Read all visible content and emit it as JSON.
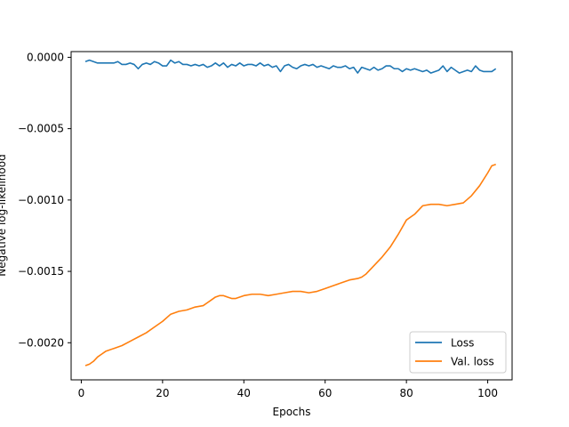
{
  "chart_data": {
    "type": "line",
    "xlabel": "Epochs",
    "ylabel": "Negative log-likelihood",
    "xlim": [
      -2.5,
      106
    ],
    "ylim": [
      -0.00226,
      4e-05
    ],
    "xticks": [
      0,
      20,
      40,
      60,
      80,
      100
    ],
    "xtick_labels": [
      "0",
      "20",
      "40",
      "60",
      "80",
      "100"
    ],
    "yticks": [
      0.0,
      -0.0005,
      -0.001,
      -0.0015,
      -0.002
    ],
    "ytick_labels": [
      "0.0000",
      "−0.0005",
      "−0.0010",
      "−0.0015",
      "−0.0020"
    ],
    "grid": false,
    "legend_position": "lower-right",
    "series": [
      {
        "name": "Loss",
        "color": "#1f77b4",
        "points": [
          [
            1,
            -3e-05
          ],
          [
            2,
            -2e-05
          ],
          [
            3,
            -3e-05
          ],
          [
            4,
            -4e-05
          ],
          [
            5,
            -4e-05
          ],
          [
            6,
            -4e-05
          ],
          [
            7,
            -4e-05
          ],
          [
            8,
            -4e-05
          ],
          [
            9,
            -3e-05
          ],
          [
            10,
            -5e-05
          ],
          [
            11,
            -5e-05
          ],
          [
            12,
            -4e-05
          ],
          [
            13,
            -5e-05
          ],
          [
            14,
            -8e-05
          ],
          [
            15,
            -5e-05
          ],
          [
            16,
            -4e-05
          ],
          [
            17,
            -5e-05
          ],
          [
            18,
            -3e-05
          ],
          [
            19,
            -4e-05
          ],
          [
            20,
            -6e-05
          ],
          [
            21,
            -6e-05
          ],
          [
            22,
            -2e-05
          ],
          [
            23,
            -4e-05
          ],
          [
            24,
            -3e-05
          ],
          [
            25,
            -5e-05
          ],
          [
            26,
            -5e-05
          ],
          [
            27,
            -6e-05
          ],
          [
            28,
            -5e-05
          ],
          [
            29,
            -6e-05
          ],
          [
            30,
            -5e-05
          ],
          [
            31,
            -7e-05
          ],
          [
            32,
            -6e-05
          ],
          [
            33,
            -4e-05
          ],
          [
            34,
            -6e-05
          ],
          [
            35,
            -4e-05
          ],
          [
            36,
            -7e-05
          ],
          [
            37,
            -5e-05
          ],
          [
            38,
            -6e-05
          ],
          [
            39,
            -4e-05
          ],
          [
            40,
            -6e-05
          ],
          [
            41,
            -5e-05
          ],
          [
            42,
            -5e-05
          ],
          [
            43,
            -6e-05
          ],
          [
            44,
            -4e-05
          ],
          [
            45,
            -6e-05
          ],
          [
            46,
            -5e-05
          ],
          [
            47,
            -7e-05
          ],
          [
            48,
            -6e-05
          ],
          [
            49,
            -0.0001
          ],
          [
            50,
            -6e-05
          ],
          [
            51,
            -5e-05
          ],
          [
            52,
            -7e-05
          ],
          [
            53,
            -8e-05
          ],
          [
            54,
            -6e-05
          ],
          [
            55,
            -5e-05
          ],
          [
            56,
            -6e-05
          ],
          [
            57,
            -5e-05
          ],
          [
            58,
            -7e-05
          ],
          [
            59,
            -6e-05
          ],
          [
            60,
            -7e-05
          ],
          [
            61,
            -8e-05
          ],
          [
            62,
            -6e-05
          ],
          [
            63,
            -7e-05
          ],
          [
            64,
            -7e-05
          ],
          [
            65,
            -6e-05
          ],
          [
            66,
            -8e-05
          ],
          [
            67,
            -7e-05
          ],
          [
            68,
            -0.00011
          ],
          [
            69,
            -7e-05
          ],
          [
            70,
            -8e-05
          ],
          [
            71,
            -9e-05
          ],
          [
            72,
            -7e-05
          ],
          [
            73,
            -9e-05
          ],
          [
            74,
            -8e-05
          ],
          [
            75,
            -6e-05
          ],
          [
            76,
            -6e-05
          ],
          [
            77,
            -8e-05
          ],
          [
            78,
            -8e-05
          ],
          [
            79,
            -0.0001
          ],
          [
            80,
            -8e-05
          ],
          [
            81,
            -9e-05
          ],
          [
            82,
            -8e-05
          ],
          [
            83,
            -9e-05
          ],
          [
            84,
            -0.0001
          ],
          [
            85,
            -9e-05
          ],
          [
            86,
            -0.00011
          ],
          [
            87,
            -0.0001
          ],
          [
            88,
            -9e-05
          ],
          [
            89,
            -6e-05
          ],
          [
            90,
            -0.0001
          ],
          [
            91,
            -7e-05
          ],
          [
            92,
            -9e-05
          ],
          [
            93,
            -0.00011
          ],
          [
            94,
            -0.0001
          ],
          [
            95,
            -9e-05
          ],
          [
            96,
            -0.0001
          ],
          [
            97,
            -6e-05
          ],
          [
            98,
            -9e-05
          ],
          [
            99,
            -0.0001
          ],
          [
            100,
            -0.0001
          ],
          [
            101,
            -0.0001
          ],
          [
            102,
            -8e-05
          ]
        ]
      },
      {
        "name": "Val. loss",
        "color": "#ff7f0e",
        "points": [
          [
            1,
            -0.00216
          ],
          [
            2,
            -0.00215
          ],
          [
            3,
            -0.00213
          ],
          [
            4,
            -0.0021
          ],
          [
            5,
            -0.00208
          ],
          [
            6,
            -0.00206
          ],
          [
            8,
            -0.00204
          ],
          [
            10,
            -0.00202
          ],
          [
            12,
            -0.00199
          ],
          [
            14,
            -0.00196
          ],
          [
            16,
            -0.00193
          ],
          [
            18,
            -0.00189
          ],
          [
            20,
            -0.00185
          ],
          [
            22,
            -0.0018
          ],
          [
            24,
            -0.00178
          ],
          [
            26,
            -0.00177
          ],
          [
            28,
            -0.00175
          ],
          [
            30,
            -0.00174
          ],
          [
            31,
            -0.00172
          ],
          [
            32,
            -0.0017
          ],
          [
            33,
            -0.00168
          ],
          [
            34,
            -0.00167
          ],
          [
            35,
            -0.00167
          ],
          [
            36,
            -0.00168
          ],
          [
            37,
            -0.00169
          ],
          [
            38,
            -0.00169
          ],
          [
            40,
            -0.00167
          ],
          [
            42,
            -0.00166
          ],
          [
            44,
            -0.00166
          ],
          [
            46,
            -0.00167
          ],
          [
            48,
            -0.00166
          ],
          [
            50,
            -0.00165
          ],
          [
            52,
            -0.00164
          ],
          [
            54,
            -0.00164
          ],
          [
            56,
            -0.00165
          ],
          [
            58,
            -0.00164
          ],
          [
            60,
            -0.00162
          ],
          [
            62,
            -0.0016
          ],
          [
            64,
            -0.00158
          ],
          [
            66,
            -0.00156
          ],
          [
            68,
            -0.00155
          ],
          [
            69,
            -0.00154
          ],
          [
            70,
            -0.00152
          ],
          [
            72,
            -0.00146
          ],
          [
            74,
            -0.0014
          ],
          [
            76,
            -0.00133
          ],
          [
            78,
            -0.00124
          ],
          [
            80,
            -0.00114
          ],
          [
            82,
            -0.0011
          ],
          [
            84,
            -0.00104
          ],
          [
            86,
            -0.00103
          ],
          [
            88,
            -0.00103
          ],
          [
            90,
            -0.00104
          ],
          [
            92,
            -0.00103
          ],
          [
            94,
            -0.00102
          ],
          [
            96,
            -0.00097
          ],
          [
            98,
            -0.0009
          ],
          [
            100,
            -0.00081
          ],
          [
            101,
            -0.00076
          ],
          [
            102,
            -0.00075
          ]
        ]
      }
    ]
  }
}
